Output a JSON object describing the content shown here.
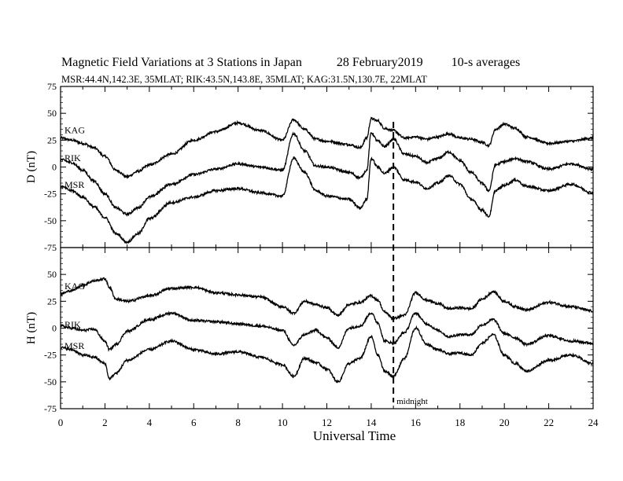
{
  "chart_data": {
    "type": "line",
    "title": "Magnetic Field Variations at 3 Stations in Japan",
    "date": "28 February2019",
    "averaging": "10-s averages",
    "subtitle": "MSR:44.4N,142.3E, 35MLAT;  RIK:43.5N,143.8E, 35MLAT;  KAG:31.5N,130.7E, 22MLAT",
    "xlabel": "Universal Time",
    "xlim": [
      0,
      24
    ],
    "xticks": [
      "0",
      "2",
      "4",
      "6",
      "8",
      "10",
      "12",
      "14",
      "16",
      "18",
      "20",
      "22",
      "24"
    ],
    "marker": {
      "x": 15,
      "label": "midnight",
      "style": "dashed"
    },
    "panels": [
      {
        "ylabel": "D (nT)",
        "ylim": [
          -75,
          75
        ],
        "yticks": [
          "75",
          "50",
          "25",
          "0",
          "-25",
          "-50",
          "-75"
        ],
        "series": [
          {
            "name": "KAG",
            "x": [
              0,
              0.5,
              1,
              1.5,
              2,
              2.5,
              3,
              3.5,
              4,
              5,
              6,
              7,
              8,
              9,
              10,
              10.5,
              11,
              11.5,
              12,
              13,
              13.5,
              13.8,
              14,
              14.3,
              14.6,
              15,
              15.5,
              16,
              16.5,
              17,
              17.5,
              18,
              18.5,
              19,
              19.3,
              19.6,
              20,
              20.5,
              21,
              22,
              23,
              24
            ],
            "y": [
              27,
              25,
              22,
              18,
              10,
              -3,
              -9,
              -4,
              2,
              12,
              25,
              33,
              41,
              34,
              25,
              44,
              35,
              26,
              24,
              21,
              18,
              27,
              45,
              43,
              36,
              34,
              27,
              28,
              26,
              28,
              31,
              27,
              26,
              23,
              20,
              35,
              40,
              36,
              28,
              22,
              24,
              27
            ]
          },
          {
            "name": "RIK",
            "x": [
              0,
              0.5,
              1,
              1.5,
              2,
              2.5,
              3,
              3.5,
              4,
              5,
              6,
              7,
              8,
              9,
              10,
              10.5,
              11,
              11.5,
              12,
              13,
              13.5,
              13.8,
              14,
              14.3,
              14.6,
              15,
              15.5,
              16,
              16.5,
              17,
              17.5,
              18,
              18.5,
              19,
              19.3,
              19.6,
              20,
              20.5,
              21,
              22,
              23,
              24
            ],
            "y": [
              7,
              4,
              -3,
              -13,
              -25,
              -38,
              -44,
              -38,
              -28,
              -16,
              -7,
              -2,
              3,
              0,
              -3,
              31,
              15,
              1,
              0,
              -5,
              -10,
              -3,
              32,
              24,
              19,
              26,
              12,
              10,
              4,
              8,
              14,
              6,
              -5,
              -15,
              -22,
              2,
              5,
              8,
              5,
              -2,
              3,
              -2
            ]
          },
          {
            "name": "MSR",
            "x": [
              0,
              0.5,
              1,
              1.5,
              2,
              2.5,
              3,
              3.5,
              4,
              5,
              6,
              7,
              8,
              9,
              10,
              10.5,
              11,
              11.5,
              12,
              13,
              13.5,
              13.8,
              14,
              14.3,
              14.6,
              15,
              15.5,
              16,
              16.5,
              17,
              17.5,
              18,
              18.5,
              19,
              19.3,
              19.6,
              20,
              20.5,
              21,
              22,
              23,
              24
            ],
            "y": [
              -18,
              -22,
              -28,
              -37,
              -47,
              -62,
              -70,
              -62,
              -48,
              -33,
              -28,
              -22,
              -20,
              -24,
              -27,
              8,
              -5,
              -22,
              -27,
              -30,
              -38,
              -30,
              8,
              0,
              -6,
              0,
              -12,
              -14,
              -20,
              -15,
              -8,
              -16,
              -30,
              -40,
              -46,
              -22,
              -17,
              -12,
              -18,
              -22,
              -16,
              -24
            ]
          }
        ]
      },
      {
        "ylabel": "H (nT)",
        "ylim": [
          -75,
          75
        ],
        "yticks": [
          "75",
          "50",
          "25",
          "0",
          "-25",
          "-50",
          "-75"
        ],
        "series": [
          {
            "name": "KAG",
            "x": [
              0,
              0.5,
              1,
              1.5,
              2,
              2.2,
              2.5,
              3,
              4,
              5,
              6,
              7,
              8,
              9,
              10,
              10.5,
              11,
              11.5,
              12,
              12.5,
              13,
              13.5,
              14,
              14.3,
              14.6,
              15,
              15.5,
              16,
              16.5,
              17,
              17.5,
              18,
              18.5,
              19,
              19.5,
              20,
              20.5,
              21,
              22,
              23,
              24
            ],
            "y": [
              32,
              35,
              40,
              44,
              46,
              38,
              27,
              25,
              30,
              37,
              38,
              33,
              31,
              29,
              20,
              14,
              25,
              22,
              19,
              12,
              22,
              24,
              30,
              26,
              15,
              9,
              12,
              33,
              26,
              23,
              18,
              19,
              18,
              27,
              34,
              25,
              20,
              17,
              24,
              20,
              16
            ]
          },
          {
            "name": "RIK",
            "x": [
              0,
              0.5,
              1,
              1.5,
              2,
              2.2,
              2.5,
              3,
              4,
              5,
              6,
              7,
              8,
              9,
              10,
              10.5,
              11,
              11.5,
              12,
              12.5,
              13,
              13.5,
              14,
              14.3,
              14.6,
              15,
              15.5,
              16,
              16.5,
              17,
              17.5,
              18,
              18.5,
              19,
              19.5,
              20,
              20.5,
              21,
              22,
              23,
              24
            ],
            "y": [
              2,
              0,
              -2,
              -1,
              -12,
              -20,
              -15,
              -3,
              8,
              14,
              7,
              6,
              4,
              2,
              -2,
              -16,
              -6,
              -2,
              -9,
              -18,
              0,
              2,
              14,
              5,
              -12,
              -14,
              -4,
              14,
              4,
              -2,
              -8,
              -6,
              -6,
              3,
              8,
              -5,
              -9,
              -15,
              -7,
              -12,
              -14
            ]
          },
          {
            "name": "MSR",
            "x": [
              0,
              0.5,
              1,
              1.5,
              2,
              2.2,
              2.5,
              3,
              4,
              5,
              6,
              7,
              8,
              9,
              10,
              10.5,
              11,
              11.5,
              12,
              12.5,
              13,
              13.5,
              14,
              14.3,
              14.6,
              15,
              15.5,
              16,
              16.5,
              17,
              17.5,
              18,
              18.5,
              19,
              19.5,
              20,
              20.5,
              21,
              22,
              23,
              24
            ],
            "y": [
              -18,
              -20,
              -25,
              -27,
              -33,
              -47,
              -42,
              -30,
              -20,
              -12,
              -20,
              -24,
              -22,
              -27,
              -34,
              -45,
              -28,
              -32,
              -38,
              -50,
              -33,
              -28,
              -8,
              -25,
              -40,
              -45,
              -28,
              0,
              -15,
              -20,
              -24,
              -23,
              -25,
              -14,
              -6,
              -25,
              -33,
              -40,
              -30,
              -25,
              -33
            ]
          }
        ]
      }
    ]
  }
}
